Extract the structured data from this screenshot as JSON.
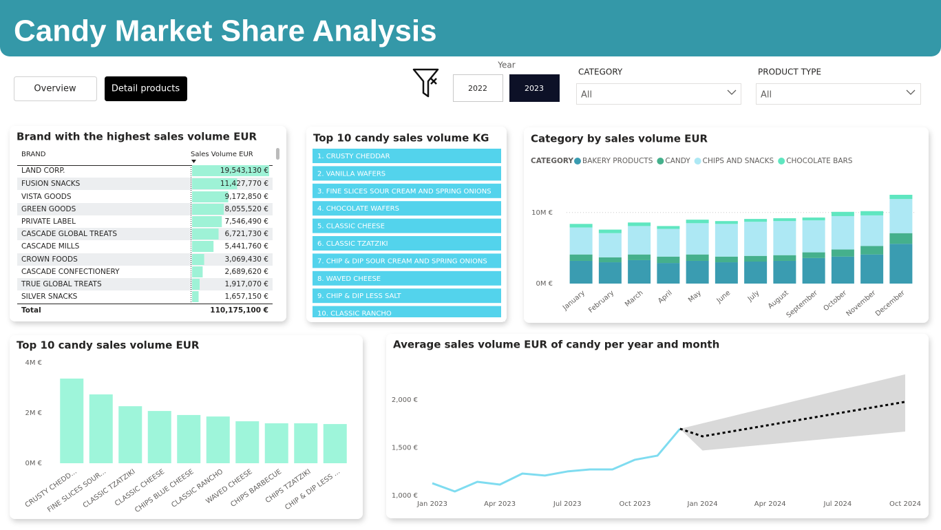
{
  "header": {
    "title": "Candy Market Share Analysis"
  },
  "nav": {
    "buttons": [
      "Overview",
      "Detail products"
    ],
    "active": 1
  },
  "filters": {
    "year": {
      "label": "Year",
      "options": [
        "2022",
        "2023"
      ],
      "selected": 1
    },
    "category": {
      "label": "CATEGORY",
      "value": "All"
    },
    "product_type": {
      "label": "PRODUCT TYPE",
      "value": "All"
    }
  },
  "brand_table": {
    "title": "Brand with the highest sales volume EUR",
    "columns": [
      "BRAND",
      "Sales Volume EUR"
    ],
    "brands": [
      "LAND CORP.",
      "FUSION SNACKS",
      "VISTA GOODS",
      "GREEN GOODS",
      "PRIVATE LABEL",
      "CASCADE GLOBAL TREATS",
      "CASCADE MILLS",
      "CROWN FOODS",
      "CASCADE CONFECTIONERY",
      "TRUE GLOBAL TREATS",
      "SILVER SNACKS"
    ],
    "values": [
      19543130,
      11427770,
      9172850,
      8055520,
      7546490,
      6721730,
      5441760,
      3069430,
      2689620,
      1917070,
      1657150
    ],
    "value_labels": [
      "19,543,130 €",
      "11,427,770 €",
      "9,172,850 €",
      "8,055,520 €",
      "7,546,490 €",
      "6,721,730 €",
      "5,441,760 €",
      "3,069,430 €",
      "2,689,620 €",
      "1,917,070 €",
      "1,657,150 €"
    ],
    "bar_color": "#9ef2d6",
    "total": {
      "label": "Total",
      "value": "110,175,100 €"
    }
  },
  "kg_list": {
    "title": "Top 10 candy sales volume KG",
    "items": [
      "1. CRUSTY CHEDDAR",
      "2. VANILLA WAFERS",
      "3. FINE SLICES SOUR CREAM AND SPRING ONIONS",
      "4. CHOCOLATE WAFERS",
      "5. CLASSIC CHEESE",
      "6. CLASSIC TZATZIKI",
      "7. CHIP & DIP SOUR CREAM AND SPRING ONIONS",
      "8. WAVED CHEESE",
      "9. CHIP & DIP LESS SALT",
      "10. CLASSIC RANCHO"
    ],
    "color": "#53d3ec"
  },
  "chart_data": [
    {
      "type": "bar",
      "stacked": true,
      "title": "Category by sales volume EUR",
      "legend_title": "CATEGORY",
      "categories": [
        "January",
        "February",
        "March",
        "April",
        "May",
        "June",
        "July",
        "August",
        "September",
        "October",
        "November",
        "December"
      ],
      "series": [
        {
          "name": "BAKERY PRODUCTS",
          "color": "#3a9cb1",
          "values": [
            3200000,
            3000000,
            3300000,
            2900000,
            3200000,
            3000000,
            3100000,
            3200000,
            3600000,
            3800000,
            4100000,
            5600000
          ]
        },
        {
          "name": "CANDY",
          "color": "#45b08c",
          "values": [
            900000,
            700000,
            800000,
            900000,
            900000,
            800000,
            800000,
            800000,
            800000,
            1000000,
            1200000,
            1500000
          ]
        },
        {
          "name": "CHIPS AND SNACKS",
          "color": "#ade8f4",
          "values": [
            3800000,
            3400000,
            4000000,
            3900000,
            4400000,
            4600000,
            4800000,
            4800000,
            4500000,
            4700000,
            4300000,
            4800000
          ]
        },
        {
          "name": "CHOCOLATE BARS",
          "color": "#5fe6c0",
          "values": [
            500000,
            500000,
            500000,
            400000,
            500000,
            400000,
            400000,
            400000,
            400000,
            600000,
            600000,
            600000
          ]
        }
      ],
      "ylim": [
        0,
        12500000
      ],
      "yticks": [
        {
          "value": 0,
          "label": "0M €"
        },
        {
          "value": 10000000,
          "label": "10M €"
        }
      ],
      "grid": true
    },
    {
      "type": "bar",
      "title": "Top 10 candy sales volume EUR",
      "categories": [
        "CRUSTY CHEDD...",
        "FINE SLICES SOUR...",
        "CLASSIC TZATZIKI",
        "CLASSIC CHEESE",
        "CHIPS BLUE CHEESE",
        "CLASSIC RANCHO",
        "WAVED CHEESE",
        "CHIPS BARBECUE",
        "CHIPS TZATZIKI",
        "CHIP & DIP LESS ..."
      ],
      "values": [
        3370000,
        2740000,
        2270000,
        2080000,
        1920000,
        1860000,
        1670000,
        1590000,
        1590000,
        1560000
      ],
      "color": "#9ef5da",
      "ylim": [
        0,
        4000000
      ],
      "yticks": [
        {
          "value": 0,
          "label": "0M €"
        },
        {
          "value": 2000000,
          "label": "2M €"
        },
        {
          "value": 4000000,
          "label": "4M €"
        }
      ],
      "grid": false
    },
    {
      "type": "line",
      "title": "Average sales volume EUR of candy per year and month",
      "x": [
        "2023-01",
        "2023-02",
        "2023-03",
        "2023-04",
        "2023-05",
        "2023-06",
        "2023-07",
        "2023-08",
        "2023-09",
        "2023-10",
        "2023-11",
        "2023-12",
        "2024-01",
        "2024-02",
        "2024-03",
        "2024-04",
        "2024-05",
        "2024-06",
        "2024-07",
        "2024-08",
        "2024-09",
        "2024-10"
      ],
      "series": [
        {
          "color": "#7fdcf0",
          "values": [
            1129,
            1043,
            1144,
            1115,
            1230,
            1209,
            1252,
            1273,
            1273,
            1374,
            1417,
            1697,
            null,
            null,
            null,
            null,
            null,
            null,
            null,
            null,
            null,
            null
          ]
        },
        {
          "color": "#000000",
          "dashed": true,
          "band_color": "#d9d9d9",
          "values": [
            null,
            null,
            null,
            null,
            null,
            null,
            null,
            null,
            null,
            null,
            null,
            1697,
            1618,
            1658,
            1698,
            1738,
            1778,
            1818,
            1858,
            1898,
            1938,
            1978
          ],
          "lower": [
            null,
            null,
            null,
            null,
            null,
            null,
            null,
            null,
            null,
            null,
            null,
            1697,
            1470,
            1492,
            1514,
            1536,
            1558,
            1580,
            1602,
            1624,
            1646,
            1668
          ],
          "upper": [
            null,
            null,
            null,
            null,
            null,
            null,
            null,
            null,
            null,
            null,
            null,
            1697,
            1754,
            1811,
            1868,
            1924,
            1981,
            2038,
            2095,
            2152,
            2208,
            2265
          ]
        }
      ],
      "xticks": [
        {
          "value": "2023-01",
          "label": "Jan 2023"
        },
        {
          "value": "2023-04",
          "label": "Apr 2023"
        },
        {
          "value": "2023-07",
          "label": "Jul 2023"
        },
        {
          "value": "2023-10",
          "label": "Oct 2023"
        },
        {
          "value": "2024-01",
          "label": "Jan 2024"
        },
        {
          "value": "2024-04",
          "label": "Apr 2024"
        },
        {
          "value": "2024-07",
          "label": "Jul 2024"
        },
        {
          "value": "2024-10",
          "label": "Oct 2024"
        }
      ],
      "ylim": [
        1000,
        2300
      ],
      "yticks": [
        {
          "value": 1000,
          "label": "1,000 €"
        },
        {
          "value": 1500,
          "label": "1,500 €"
        },
        {
          "value": 2000,
          "label": "2,000 €"
        }
      ],
      "grid": false
    }
  ]
}
